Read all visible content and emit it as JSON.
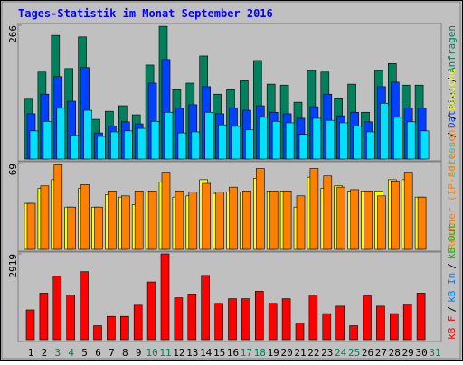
{
  "chart_data": [
    {
      "type": "bar",
      "title": "Tages-Statistik im Monat September 2016",
      "legend_separator": "/",
      "legend_reverse": true,
      "ylim": [
        0,
        266
      ],
      "yticks": [
        266
      ],
      "series": [
        {
          "name": "Anfragen",
          "color": "#00805c",
          "values": [
            119,
            173,
            246,
            180,
            243,
            79,
            95,
            106,
            88,
            187,
            264,
            138,
            151,
            205,
            129,
            138,
            156,
            196,
            149,
            147,
            113,
            176,
            173,
            120,
            149,
            93,
            176,
            190,
            147,
            147,
            null
          ]
        },
        {
          "name": "Dateien",
          "color": "#0040ff",
          "values": [
            90,
            129,
            164,
            115,
            182,
            52,
            66,
            74,
            70,
            151,
            198,
            101,
            108,
            144,
            90,
            102,
            97,
            106,
            93,
            90,
            81,
            104,
            129,
            86,
            93,
            74,
            144,
            153,
            102,
            101,
            null
          ]
        },
        {
          "name": "Seiten",
          "color": "#00e0ff",
          "values": [
            56,
            75,
            101,
            47,
            97,
            45,
            54,
            56,
            61,
            75,
            93,
            52,
            54,
            93,
            68,
            65,
            58,
            83,
            75,
            72,
            49,
            81,
            77,
            72,
            66,
            54,
            111,
            83,
            74,
            56,
            null
          ]
        }
      ]
    },
    {
      "type": "bar",
      "legend_reverse": true,
      "ylim": [
        0,
        69
      ],
      "yticks": [
        69
      ],
      "series": [
        {
          "name": "Besuche",
          "color": "#ffff00",
          "values": [
            37,
            49,
            56,
            34,
            49,
            34,
            44,
            42,
            36,
            46,
            54,
            42,
            43,
            56,
            45,
            46,
            46,
            57,
            47,
            47,
            34,
            58,
            49,
            51,
            47,
            47,
            47,
            56,
            56,
            42,
            null
          ]
        },
        {
          "name": "Rechner (IP-Adressen)",
          "color": "#ff8000",
          "values": [
            37,
            51,
            68,
            34,
            52,
            34,
            47,
            43,
            47,
            47,
            62,
            47,
            46,
            53,
            46,
            50,
            47,
            65,
            47,
            47,
            43,
            65,
            59,
            50,
            48,
            47,
            43,
            55,
            62,
            42,
            null
          ]
        }
      ]
    },
    {
      "type": "bar",
      "legend_reverse": false,
      "ylim": [
        0,
        2919
      ],
      "yticks": [
        2919
      ],
      "categories": [
        1,
        2,
        3,
        4,
        5,
        6,
        7,
        8,
        9,
        10,
        11,
        12,
        13,
        14,
        15,
        16,
        17,
        18,
        19,
        20,
        21,
        22,
        23,
        24,
        25,
        26,
        27,
        28,
        29,
        30,
        31
      ],
      "category_colors": [
        "#000",
        "#000",
        "#00805c",
        "#00805c",
        "#000",
        "#000",
        "#000",
        "#000",
        "#000",
        "#00805c",
        "#00805c",
        "#000",
        "#000",
        "#000",
        "#000",
        "#000",
        "#00805c",
        "#00805c",
        "#000",
        "#000",
        "#000",
        "#000",
        "#000",
        "#00805c",
        "#00805c",
        "#000",
        "#000",
        "#000",
        "#000",
        "#000",
        "#00805c"
      ],
      "series": [
        {
          "name": "kB F",
          "color": "#ff0000",
          "values": [
            1014,
            1585,
            2155,
            1522,
            2314,
            476,
            793,
            793,
            1173,
            1965,
            2919,
            1427,
            1553,
            2187,
            1236,
            1395,
            1395,
            1648,
            1236,
            1395,
            571,
            1522,
            888,
            1141,
            476,
            1490,
            1141,
            888,
            1205,
            1585,
            null
          ]
        },
        {
          "name": "kB In",
          "color": "#0080ff"
        },
        {
          "name": "kB Out",
          "color": "#00c000"
        }
      ]
    }
  ]
}
